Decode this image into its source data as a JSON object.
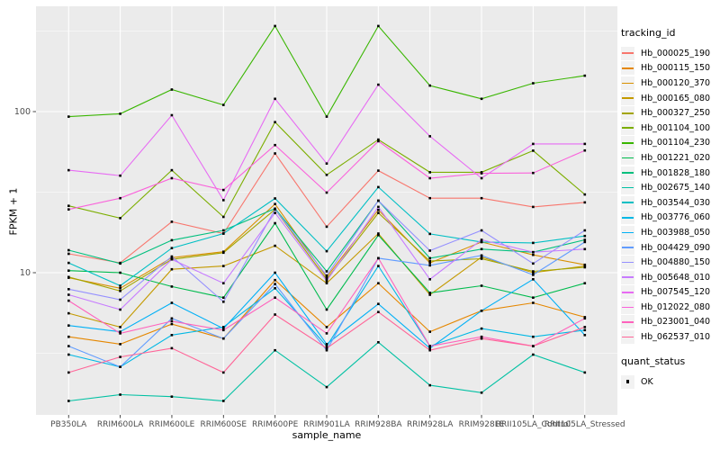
{
  "chart_data": {
    "type": "line",
    "title": "",
    "xlabel": "sample_name",
    "ylabel": "FPKM + 1",
    "y_scale": "log10",
    "y_ticks": [
      10,
      100
    ],
    "y_tick_labels": [
      "10",
      "100"
    ],
    "y_minor_ticks": [
      3.162,
      31.623,
      316.228
    ],
    "ylim": [
      1.3,
      450
    ],
    "grid": "on",
    "panel_bg": "#EBEBEB",
    "grid_color": "#FFFFFF",
    "tick_label_color": "#4D4D4D",
    "point_shape": "small-black-square",
    "legend_position": "right",
    "categories": [
      "PB350LA",
      "RRIM600LA",
      "RRIM600LE",
      "RRIM600SE",
      "RRIM600PE",
      "RRIM901LA",
      "RRIM928BA",
      "RRIM928LA",
      "RRIM928LE",
      "RRII105LA_Control",
      "RRII105LA_Stressed"
    ],
    "series": [
      {
        "name": "Hb_000025_190",
        "color": "#F8766D",
        "values": [
          13.1,
          11.5,
          20.7,
          17.5,
          55,
          19.3,
          43,
          29,
          29,
          25.6,
          27.3
        ]
      },
      {
        "name": "Hb_000115_150",
        "color": "#E58700",
        "values": [
          4.0,
          3.6,
          4.8,
          3.9,
          9.0,
          4.6,
          8.6,
          4.3,
          5.8,
          6.5,
          5.3
        ]
      },
      {
        "name": "Hb_000120_370",
        "color": "#D89000",
        "values": [
          9.3,
          8.0,
          12.4,
          13.5,
          26.7,
          9.4,
          24.5,
          11.5,
          15.5,
          12.9,
          11.2
        ]
      },
      {
        "name": "Hb_000165_080",
        "color": "#C49A00",
        "values": [
          5.6,
          4.6,
          10.5,
          11.0,
          14.7,
          8.6,
          17.5,
          7.3,
          12.5,
          10.0,
          11.0
        ]
      },
      {
        "name": "Hb_000327_250",
        "color": "#A3A500",
        "values": [
          9.4,
          7.7,
          12.1,
          13.3,
          24.7,
          9.1,
          23.5,
          11.8,
          12.2,
          10.2,
          10.8
        ]
      },
      {
        "name": "Hb_001104_100",
        "color": "#7CAE00",
        "values": [
          26,
          21.8,
          43.3,
          22.2,
          86,
          40.5,
          67,
          42,
          42,
          57.2,
          30.6
        ]
      },
      {
        "name": "Hb_001104_230",
        "color": "#39B600",
        "values": [
          93,
          97,
          137,
          110,
          340,
          93,
          340,
          145,
          120,
          150,
          167
        ]
      },
      {
        "name": "Hb_001221_020",
        "color": "#00BB4E",
        "values": [
          10.3,
          10.0,
          8.2,
          7.0,
          20.3,
          5.9,
          17.1,
          7.5,
          8.3,
          7.0,
          8.6
        ]
      },
      {
        "name": "Hb_001828_180",
        "color": "#00BF7D",
        "values": [
          13.8,
          11.4,
          15.9,
          18.3,
          25,
          10.2,
          28,
          12.3,
          14.0,
          13.4,
          16.0
        ]
      },
      {
        "name": "Hb_002675_140",
        "color": "#00C1A3",
        "values": [
          1.6,
          1.75,
          1.7,
          1.6,
          3.3,
          1.95,
          3.7,
          2.0,
          1.8,
          3.1,
          2.4
        ]
      },
      {
        "name": "Hb_003544_030",
        "color": "#00BFC4",
        "values": [
          11.5,
          8.3,
          14.2,
          17.5,
          28.9,
          13.6,
          34,
          17.4,
          15.5,
          15.3,
          16.9
        ]
      },
      {
        "name": "Hb_003776_060",
        "color": "#00B8E5",
        "values": [
          3.1,
          2.6,
          4.1,
          4.6,
          8.0,
          3.5,
          11.0,
          3.5,
          4.5,
          4.0,
          4.4
        ]
      },
      {
        "name": "Hb_003988_050",
        "color": "#00B0F6",
        "values": [
          4.7,
          4.3,
          6.5,
          4.5,
          10.0,
          3.6,
          6.4,
          3.4,
          5.8,
          9.1,
          4.1
        ]
      },
      {
        "name": "Hb_004429_090",
        "color": "#619CFF",
        "values": [
          3.5,
          2.6,
          5.2,
          3.9,
          8.5,
          3.3,
          12.3,
          11.1,
          12.8,
          9.7,
          15.5
        ]
      },
      {
        "name": "Hb_004880_150",
        "color": "#9590FF",
        "values": [
          7.9,
          6.8,
          12.6,
          6.6,
          24.7,
          9.6,
          28.0,
          13.7,
          18.3,
          11.4,
          18.3
        ]
      },
      {
        "name": "Hb_005648_010",
        "color": "#C77CFF",
        "values": [
          7.3,
          5.9,
          12.1,
          8.6,
          23.5,
          8.9,
          25.6,
          9.1,
          16.0,
          13.4,
          14.0
        ]
      },
      {
        "name": "Hb_007545_120",
        "color": "#E76BF3",
        "values": [
          43.3,
          40.0,
          95,
          28.2,
          120,
          47.6,
          147,
          70.3,
          38.6,
          63,
          63
        ]
      },
      {
        "name": "Hb_012022_080",
        "color": "#FA62DB",
        "values": [
          24.7,
          29.0,
          38.6,
          32.6,
          62,
          31.4,
          65.5,
          38.6,
          41.4,
          41.6,
          57.4
        ]
      },
      {
        "name": "Hb_023001_040",
        "color": "#FF62BC",
        "values": [
          6.7,
          4.2,
          5.0,
          4.4,
          7.0,
          4.2,
          12.3,
          3.5,
          4.0,
          3.5,
          5.2
        ]
      },
      {
        "name": "Hb_062537_010",
        "color": "#FF6598",
        "values": [
          2.4,
          3.0,
          3.4,
          2.4,
          5.5,
          3.4,
          5.7,
          3.3,
          3.9,
          3.5,
          4.6
        ]
      }
    ],
    "legend": {
      "series_title": "tracking_id",
      "quant_title": "quant_status",
      "quant_items": [
        {
          "label": "OK"
        }
      ]
    }
  }
}
